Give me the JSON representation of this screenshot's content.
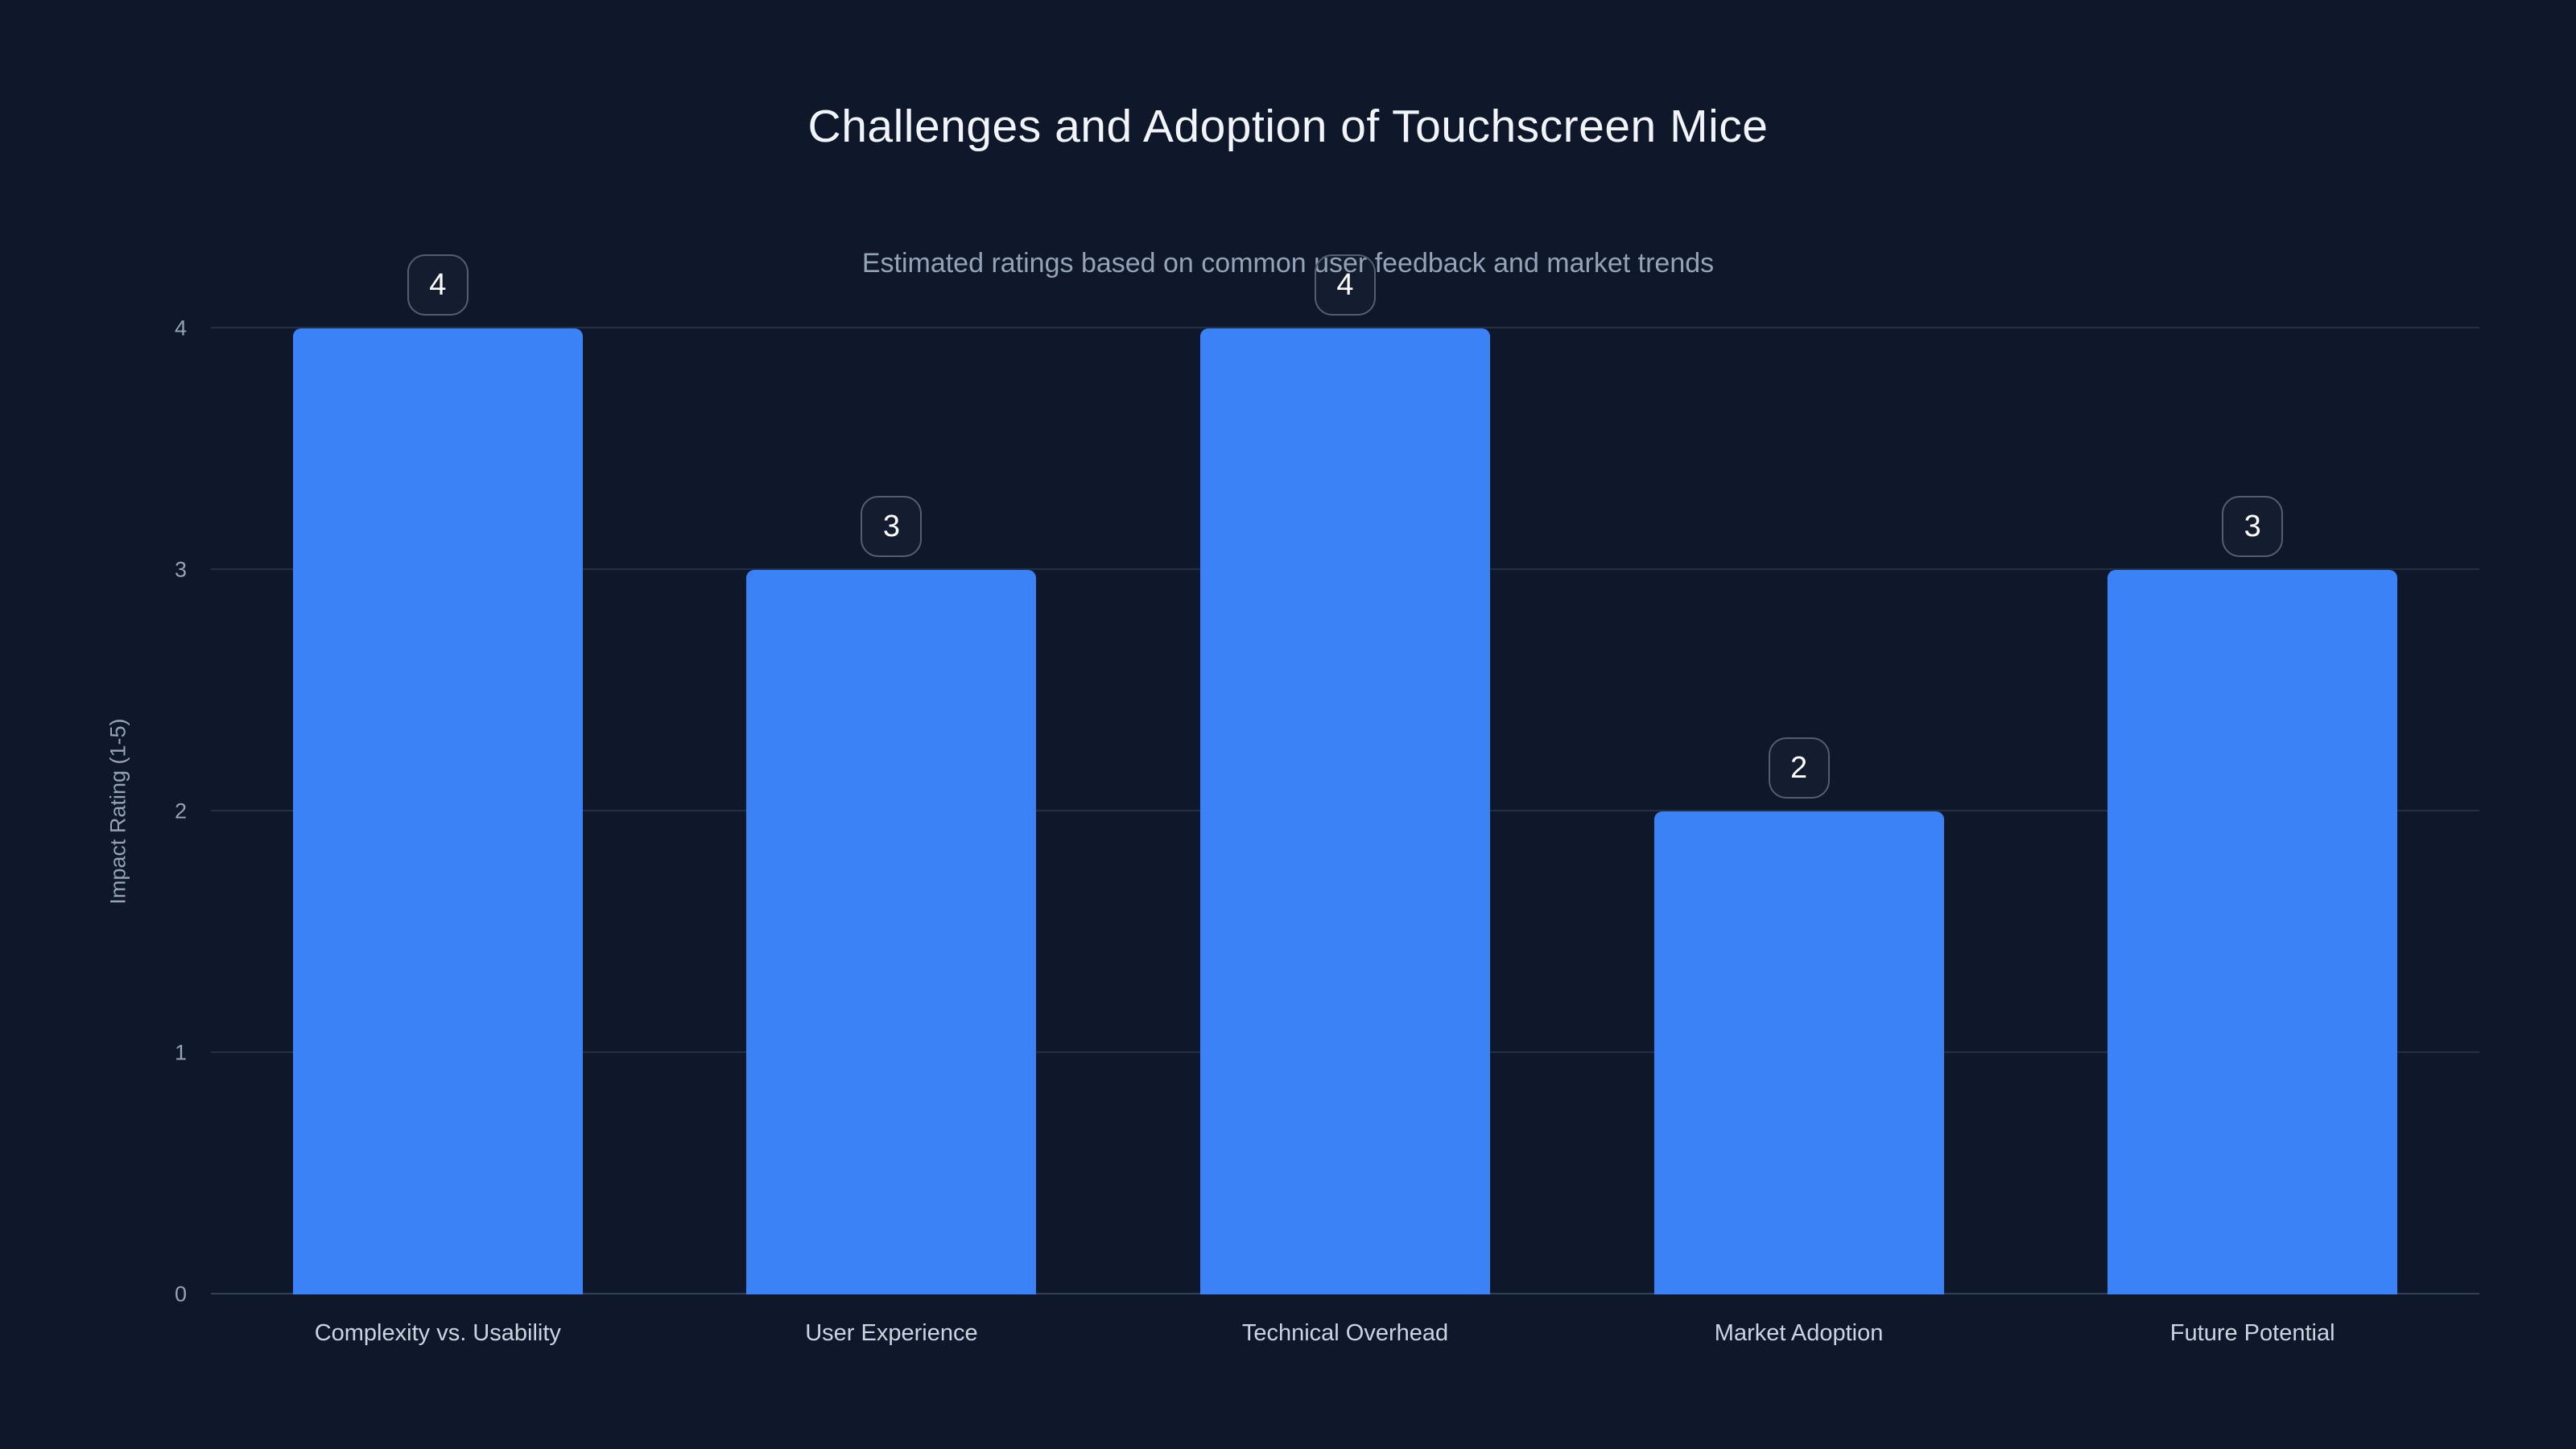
{
  "chart_data": {
    "type": "bar",
    "title": "Challenges and Adoption of Touchscreen Mice",
    "subtitle": "Estimated ratings based on common user feedback and market trends",
    "categories": [
      "Complexity vs. Usability",
      "User Experience",
      "Technical Overhead",
      "Market Adoption",
      "Future Potential"
    ],
    "values": [
      4,
      3,
      4,
      2,
      3
    ],
    "xlabel": "",
    "ylabel": "Impact Rating (1-5)",
    "ylim": [
      0,
      4
    ],
    "yticks": [
      0,
      1,
      2,
      3,
      4
    ],
    "grid": true,
    "legend": false,
    "value_badges": [
      4,
      3,
      4,
      2,
      3
    ],
    "bar_color": "#3b82f6",
    "background_color": "#0f172a",
    "text_color": "#f1f5f9",
    "muted_text_color": "#94a3b8"
  }
}
